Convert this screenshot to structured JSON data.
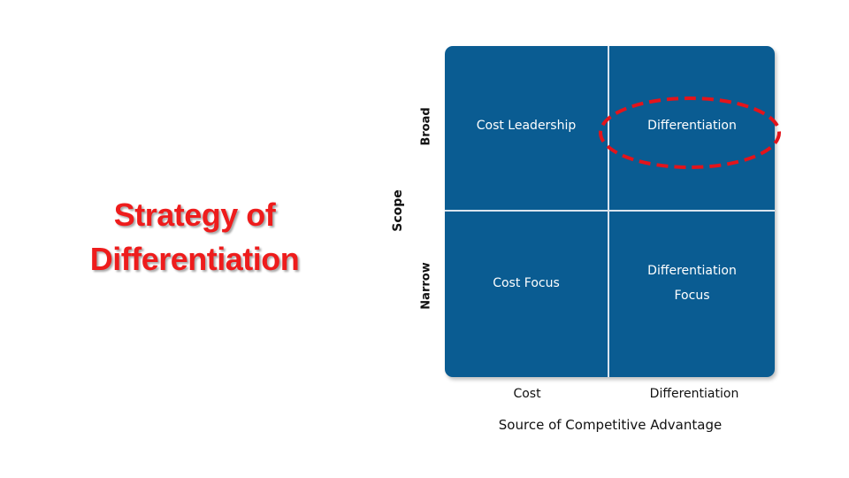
{
  "slide": {
    "title_line1": "Strategy of",
    "title_line2": "Differentiation"
  },
  "matrix": {
    "quadrants": {
      "top_left": "Cost Leadership",
      "top_right": "Differentiation",
      "bottom_left": "Cost Focus",
      "bottom_right_line1": "Differentiation",
      "bottom_right_line2": "Focus"
    },
    "y_axis": {
      "title": "Scope",
      "top_label": "Broad",
      "bottom_label": "Narrow"
    },
    "x_axis": {
      "title": "Source of Competitive Advantage",
      "left_label": "Cost",
      "right_label": "Differentiation"
    },
    "highlighted_quadrant": "top_right"
  },
  "colors": {
    "title": "#ee1c1c",
    "matrix_fill": "#0a5c92",
    "highlight_oval": "#e3141b"
  }
}
